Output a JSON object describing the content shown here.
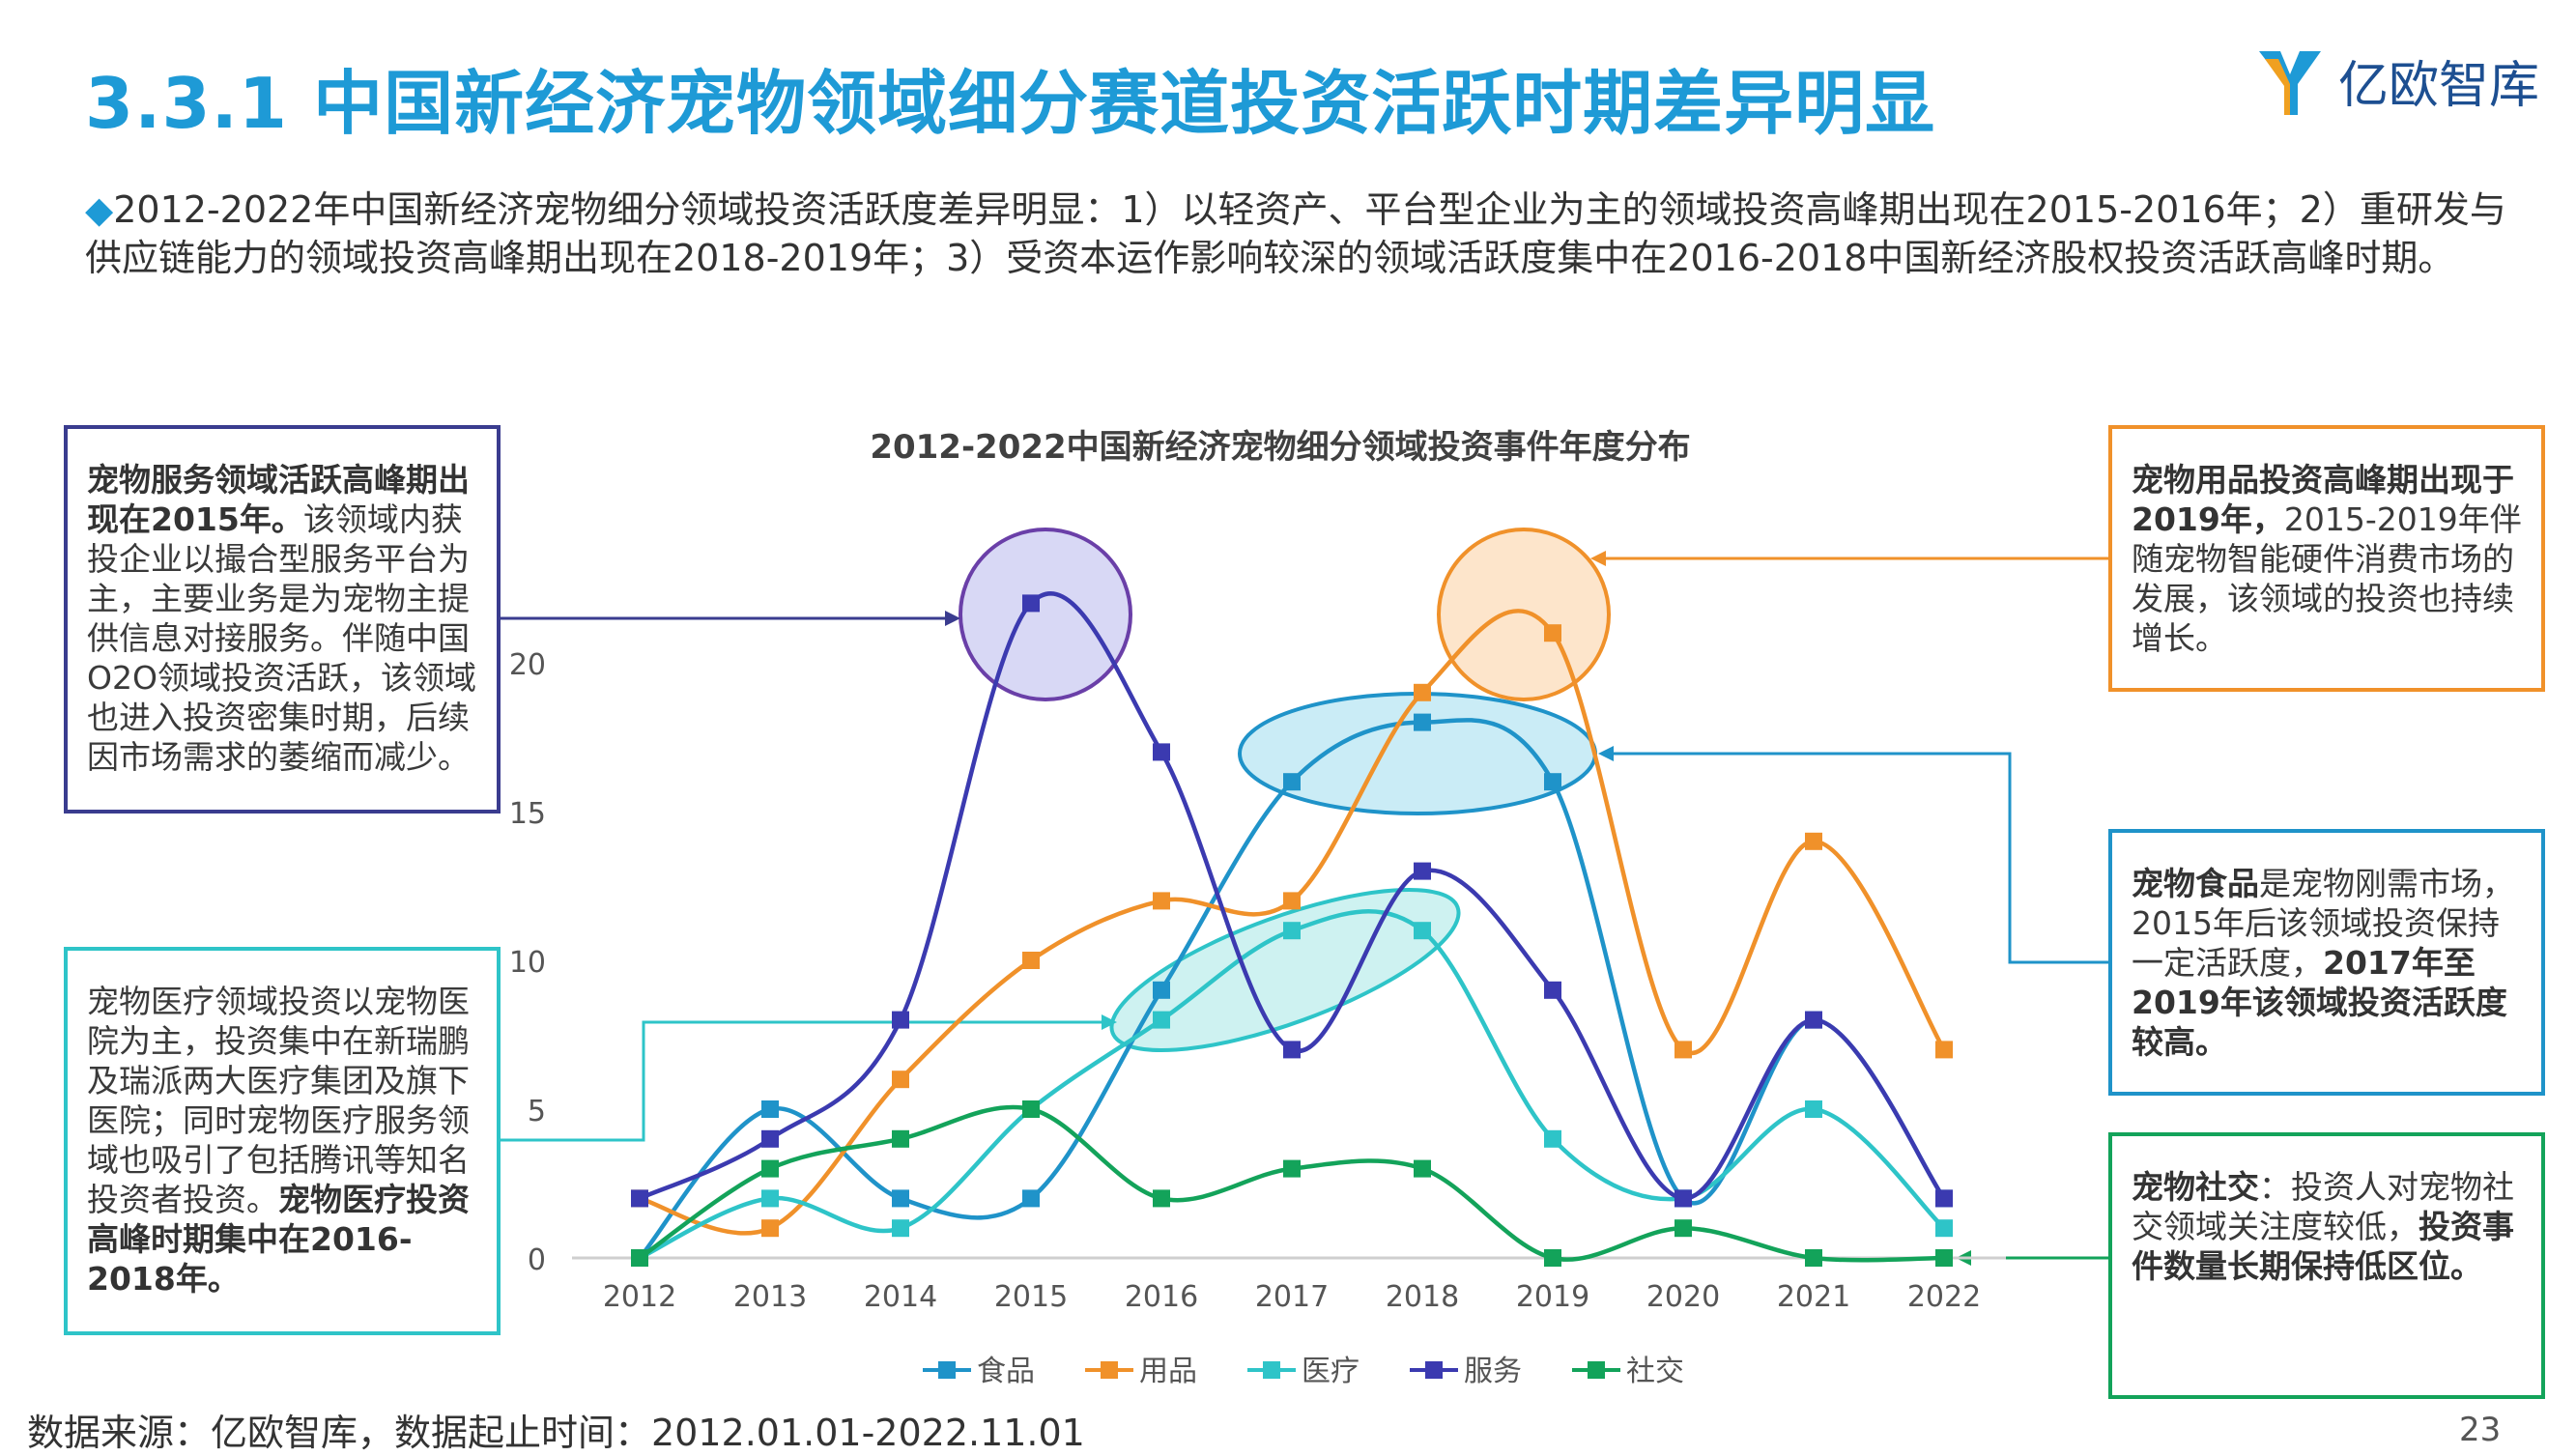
{
  "header": {
    "title": "3.3.1 中国新经济宠物领域细分赛道投资活跃时期差异明显",
    "logo_text": "亿欧智库"
  },
  "intro": {
    "bullet": "◆",
    "text": "2012-2022年中国新经济宠物细分领域投资活跃度差异明显：1）以轻资产、平台型企业为主的领域投资高峰期出现在2015-2016年；2）重研发与供应链能力的领域投资高峰期出现在2018-2019年；3）受资本运作影响较深的领域活跃度集中在2016-2018中国新经济股权投资活跃高峰时期。"
  },
  "annotations": {
    "service": {
      "bold": "宠物服务领域活跃高峰期出现在2015年。",
      "text": "该领域内获投企业以撮合型服务平台为主，主要业务是为宠物主提供信息对接服务。伴随中国O2O领域投资活跃，该领域也进入投资密集时期，后续因市场需求的萎缩而减少。"
    },
    "medical": {
      "text": "宠物医疗领域投资以宠物医院为主，投资集中在新瑞鹏及瑞派两大医疗集团及旗下医院；同时宠物医疗服务领域也吸引了包括腾讯等知名投资者投资。",
      "bold": "宠物医疗投资高峰时期集中在2016-2018年。"
    },
    "supplies": {
      "bold": "宠物用品投资高峰期出现于2019年，",
      "text": "2015-2019年伴随宠物智能硬件消费市场的发展，该领域的投资也持续增长。"
    },
    "food": {
      "bold1": "宠物食品",
      "text": "是宠物刚需市场，2015年后该领域投资保持一定活跃度，",
      "bold2": "2017年至2019年该领域投资活跃度较高。"
    },
    "social": {
      "bold1": "宠物社交",
      "text": "：投资人对宠物社交领域关注度较低，",
      "bold2": "投资事件数量长期保持低区位。"
    }
  },
  "chart_data": {
    "type": "line",
    "title": "2012-2022中国新经济宠物细分领域投资事件年度分布",
    "x": [
      "2012",
      "2013",
      "2014",
      "2015",
      "2016",
      "2017",
      "2018",
      "2019",
      "2020",
      "2021",
      "2022"
    ],
    "y_ticks": [
      "0",
      "5",
      "10",
      "15",
      "20"
    ],
    "ylim": [
      0,
      25
    ],
    "grid": false,
    "legend_position": "bottom",
    "series": [
      {
        "name": "食品",
        "color": "#1f93c9",
        "values": [
          0,
          5,
          2,
          2,
          9,
          16,
          18,
          16,
          2,
          8,
          2
        ]
      },
      {
        "name": "用品",
        "color": "#f0912a",
        "values": [
          2,
          1,
          6,
          10,
          12,
          12,
          19,
          21,
          7,
          14,
          7
        ]
      },
      {
        "name": "医疗",
        "color": "#2ec4c8",
        "values": [
          0,
          2,
          1,
          5,
          8,
          11,
          11,
          4,
          2,
          5,
          1
        ]
      },
      {
        "name": "服务",
        "color": "#3b3ab0",
        "values": [
          2,
          4,
          8,
          22,
          17,
          7,
          13,
          9,
          2,
          8,
          2
        ]
      },
      {
        "name": "社交",
        "color": "#13a35a",
        "values": [
          0,
          3,
          4,
          5,
          2,
          3,
          3,
          0,
          1,
          0,
          0
        ]
      }
    ]
  },
  "footer": {
    "source": "数据来源：亿欧智库，数据起止时间：2012.01.01-2022.11.01",
    "page": "23"
  }
}
